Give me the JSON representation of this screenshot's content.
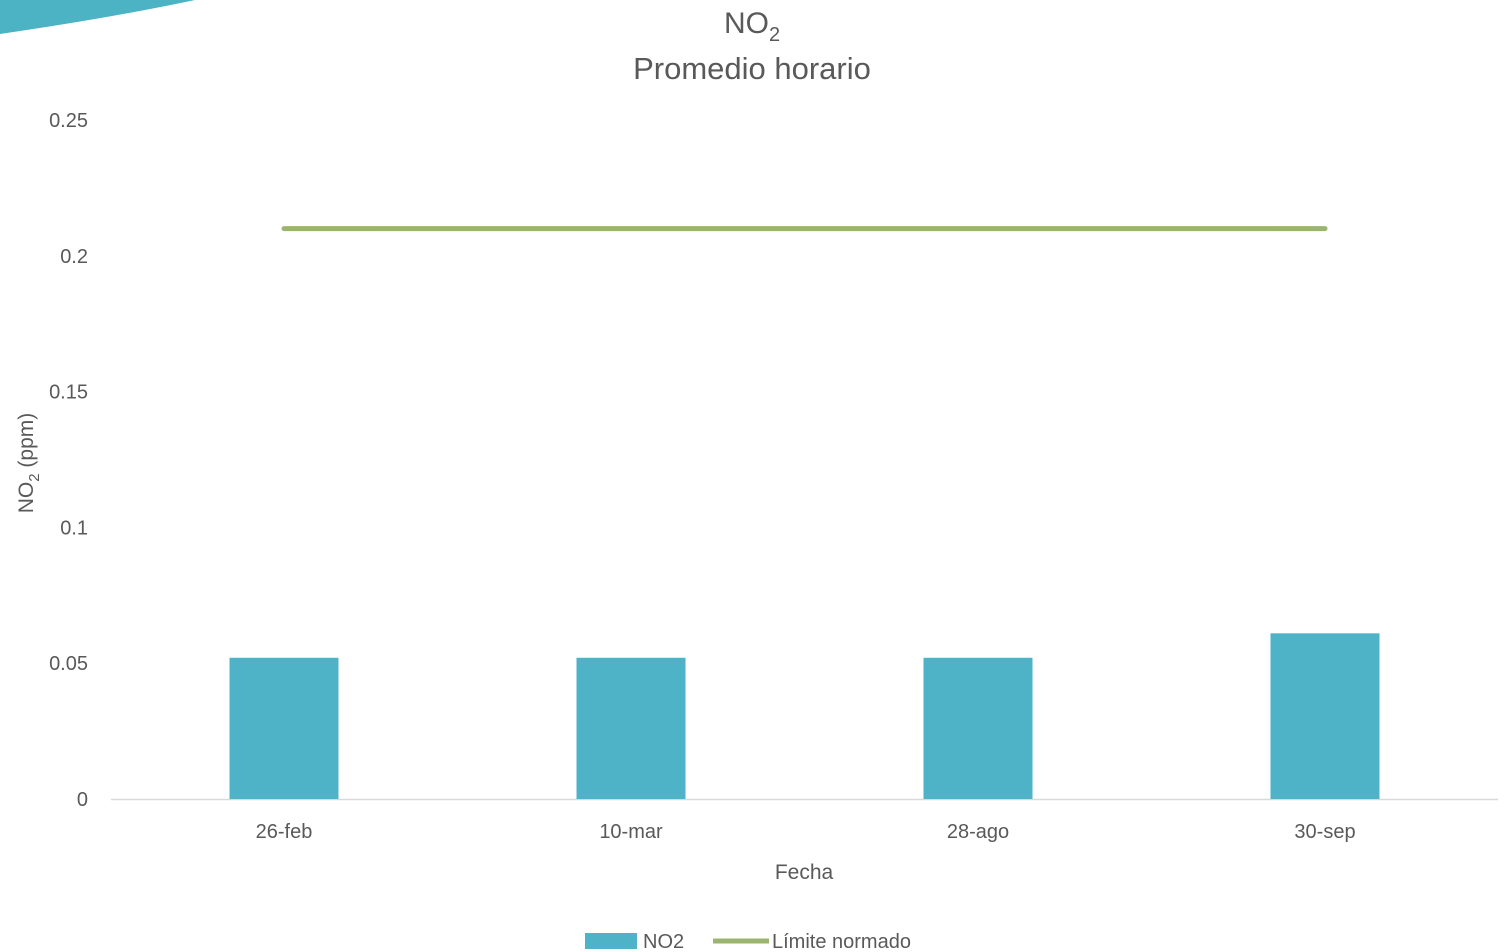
{
  "chart_data": {
    "type": "bar",
    "title": {
      "main": "NO",
      "subscript": "2",
      "line2": "Promedio horario"
    },
    "xlabel": "Fecha",
    "ylabel": {
      "main": "NO",
      "subscript": "2",
      "rest": " (ppm)"
    },
    "categories": [
      "26-feb",
      "10-mar",
      "28-ago",
      "30-sep"
    ],
    "ylim": [
      0,
      0.25
    ],
    "yticks": [
      0,
      0.05,
      0.1,
      0.15,
      0.2,
      0.25
    ],
    "ytick_labels": [
      "0",
      "0.05",
      "0.1",
      "0.15",
      "0.2",
      "0.25"
    ],
    "grid": false,
    "legend_placement": "bottom",
    "series": [
      {
        "name": "NO2",
        "kind": "bar",
        "color": "#4fb3c8",
        "values": [
          0.052,
          0.052,
          0.052,
          0.061
        ]
      },
      {
        "name": "Límite normado",
        "kind": "line",
        "color": "#9bb46f",
        "values": [
          0.21,
          0.21,
          0.21,
          0.21
        ]
      }
    ],
    "decoration_color": "#4bb3c4"
  }
}
